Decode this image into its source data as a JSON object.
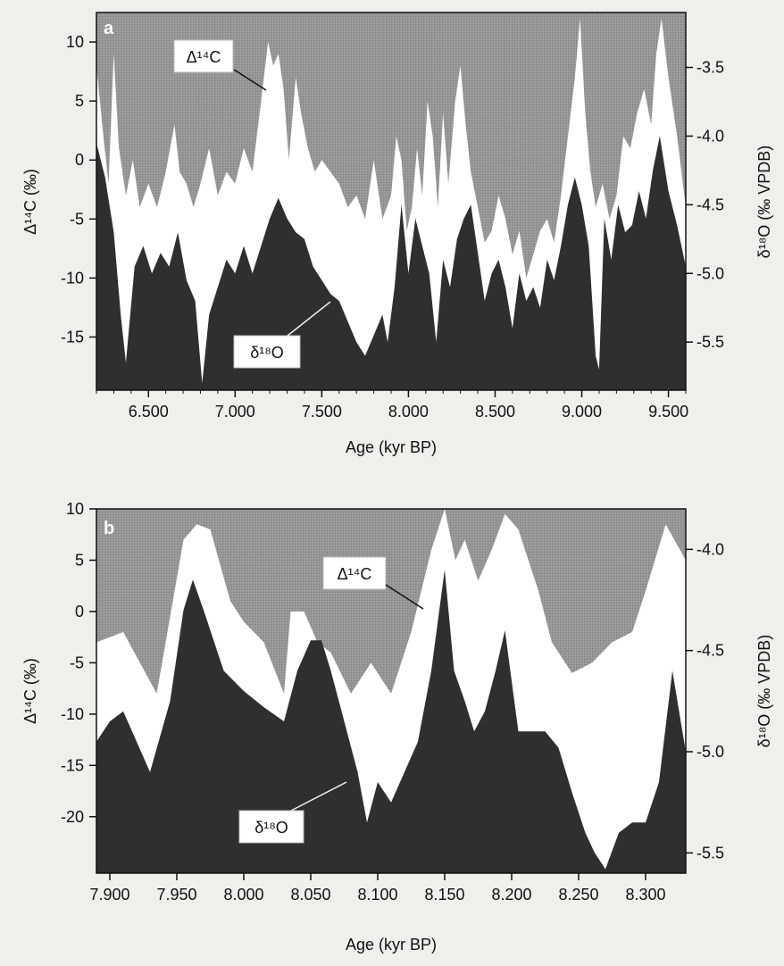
{
  "chart_data": [
    {
      "type": "area",
      "panel_label": "a",
      "xlabel": "Age (kyr BP)",
      "ylabel_left": "Δ¹⁴C (‰)",
      "ylabel_right": "δ¹⁸O (‰ VPDB)",
      "xlim": [
        6.2,
        9.6
      ],
      "ylim_left": [
        -19.5,
        12.5
      ],
      "ylim_right": [
        -5.85,
        -3.1
      ],
      "x_ticks": [
        6.5,
        7.0,
        7.5,
        8.0,
        8.5,
        9.0,
        9.5
      ],
      "x_tick_labels": [
        "6.500",
        "7.000",
        "7.500",
        "8.000",
        "8.500",
        "9.000",
        "9.500"
      ],
      "y_left_ticks": [
        10,
        5,
        0,
        -5,
        -10,
        -15
      ],
      "y_left_tick_labels": [
        "10",
        "5",
        "0",
        "-5",
        "-10",
        "-15"
      ],
      "y_right_ticks": [
        -3.5,
        -4.0,
        -4.5,
        -5.0,
        -5.5
      ],
      "y_right_tick_labels": [
        "-3.5",
        "-4.0",
        "-4.5",
        "-5.0",
        "-5.5"
      ],
      "series": [
        {
          "name": "Δ¹⁴C",
          "axis": "left",
          "x": [
            6.2,
            6.24,
            6.27,
            6.3,
            6.33,
            6.37,
            6.41,
            6.45,
            6.5,
            6.55,
            6.6,
            6.65,
            6.68,
            6.72,
            6.76,
            6.8,
            6.85,
            6.9,
            6.95,
            7.0,
            7.05,
            7.1,
            7.15,
            7.19,
            7.22,
            7.25,
            7.28,
            7.31,
            7.35,
            7.38,
            7.42,
            7.46,
            7.5,
            7.55,
            7.6,
            7.65,
            7.7,
            7.75,
            7.8,
            7.85,
            7.9,
            7.93,
            7.96,
            7.99,
            8.02,
            8.05,
            8.08,
            8.11,
            8.14,
            8.17,
            8.2,
            8.23,
            8.27,
            8.3,
            8.33,
            8.36,
            8.4,
            8.44,
            8.48,
            8.52,
            8.56,
            8.6,
            8.64,
            8.68,
            8.72,
            8.76,
            8.8,
            8.84,
            8.88,
            8.92,
            8.96,
            8.99,
            9.02,
            9.05,
            9.08,
            9.12,
            9.16,
            9.2,
            9.24,
            9.28,
            9.32,
            9.36,
            9.4,
            9.43,
            9.46,
            9.5,
            9.55,
            9.6
          ],
          "values": [
            8,
            2,
            -2,
            9,
            1,
            -3,
            0,
            -4,
            -2,
            -4,
            -1,
            3,
            -1,
            -2,
            -4,
            -2,
            1,
            -3,
            -1,
            -2,
            1,
            -1,
            5,
            10,
            8,
            9,
            6,
            0,
            7,
            4,
            1,
            -1,
            0,
            -1,
            -2,
            -4,
            -3,
            -5,
            0,
            -5,
            -3,
            2,
            0,
            -6,
            -4,
            1,
            -3,
            5,
            2,
            -4,
            4,
            -2,
            5,
            8,
            3,
            -1,
            -4,
            -7,
            -6,
            -3,
            -5,
            -8,
            -6,
            -10,
            -8,
            -6,
            -5,
            -7,
            -3,
            2,
            7,
            12,
            4,
            -1,
            -4,
            -2,
            -5,
            -3,
            2,
            1,
            4,
            6,
            3,
            9,
            12,
            7,
            2,
            -4
          ]
        },
        {
          "name": "δ¹⁸O",
          "axis": "right",
          "x": [
            6.2,
            6.25,
            6.3,
            6.34,
            6.37,
            6.42,
            6.47,
            6.52,
            6.57,
            6.62,
            6.67,
            6.72,
            6.77,
            6.81,
            6.85,
            6.9,
            6.95,
            7.0,
            7.05,
            7.1,
            7.15,
            7.2,
            7.25,
            7.3,
            7.35,
            7.4,
            7.45,
            7.5,
            7.55,
            7.6,
            7.65,
            7.7,
            7.75,
            7.8,
            7.85,
            7.88,
            7.92,
            7.96,
            8.0,
            8.04,
            8.08,
            8.12,
            8.16,
            8.2,
            8.24,
            8.28,
            8.32,
            8.36,
            8.4,
            8.44,
            8.48,
            8.52,
            8.56,
            8.6,
            8.64,
            8.68,
            8.72,
            8.76,
            8.8,
            8.84,
            8.88,
            8.92,
            8.96,
            9.0,
            9.04,
            9.08,
            9.1,
            9.13,
            9.17,
            9.21,
            9.25,
            9.29,
            9.33,
            9.37,
            9.41,
            9.45,
            9.5,
            9.55,
            9.6
          ],
          "values": [
            -4.05,
            -4.3,
            -4.7,
            -5.3,
            -5.65,
            -4.95,
            -4.8,
            -5.0,
            -4.85,
            -4.95,
            -4.7,
            -5.05,
            -5.2,
            -5.8,
            -5.3,
            -5.1,
            -4.9,
            -5.0,
            -4.8,
            -5.0,
            -4.8,
            -4.6,
            -4.45,
            -4.6,
            -4.7,
            -4.75,
            -4.95,
            -5.05,
            -5.15,
            -5.2,
            -5.35,
            -5.5,
            -5.6,
            -5.45,
            -5.3,
            -5.5,
            -5.1,
            -4.5,
            -5.0,
            -4.6,
            -4.8,
            -5.0,
            -5.5,
            -4.9,
            -5.1,
            -4.75,
            -4.6,
            -4.5,
            -4.85,
            -5.2,
            -5.0,
            -4.9,
            -5.1,
            -5.4,
            -5.0,
            -5.2,
            -5.1,
            -5.25,
            -4.9,
            -5.05,
            -4.8,
            -4.5,
            -4.3,
            -4.5,
            -4.8,
            -5.6,
            -5.7,
            -4.6,
            -4.9,
            -4.5,
            -4.7,
            -4.65,
            -4.4,
            -4.6,
            -4.25,
            -4.0,
            -4.4,
            -4.65,
            -4.95
          ]
        }
      ],
      "annotations": [
        {
          "text": "Δ¹⁴C",
          "target_series": 0
        },
        {
          "text": "δ¹⁸O",
          "target_series": 1
        }
      ],
      "grid": false
    },
    {
      "type": "area",
      "panel_label": "b",
      "xlabel": "Age (kyr BP)",
      "ylabel_left": "Δ¹⁴C (‰)",
      "ylabel_right": "δ¹⁸O (‰ VPDB)",
      "xlim": [
        7.89,
        8.33
      ],
      "ylim_left": [
        -25.5,
        10
      ],
      "ylim_right": [
        -5.6,
        -3.8
      ],
      "x_ticks": [
        7.9,
        7.95,
        8.0,
        8.05,
        8.1,
        8.15,
        8.2,
        8.25,
        8.3
      ],
      "x_tick_labels": [
        "7.900",
        "7.950",
        "8.000",
        "8.050",
        "8.100",
        "8.150",
        "8.200",
        "8.250",
        "8.300"
      ],
      "y_left_ticks": [
        10,
        5,
        0,
        -5,
        -10,
        -15,
        -20
      ],
      "y_left_tick_labels": [
        "10",
        "5",
        "0",
        "-5",
        "-10",
        "-15",
        "-20"
      ],
      "y_right_ticks": [
        -4.0,
        -4.5,
        -5.0,
        -5.5
      ],
      "y_right_tick_labels": [
        "-4.0",
        "-4.5",
        "-5.0",
        "-5.5"
      ],
      "series": [
        {
          "name": "Δ¹⁴C",
          "axis": "left",
          "x": [
            7.89,
            7.91,
            7.935,
            7.955,
            7.965,
            7.975,
            7.99,
            8.0,
            8.015,
            8.03,
            8.035,
            8.045,
            8.055,
            8.065,
            8.08,
            8.095,
            8.11,
            8.125,
            8.14,
            8.15,
            8.158,
            8.165,
            8.175,
            8.185,
            8.195,
            8.205,
            8.22,
            8.23,
            8.245,
            8.26,
            8.275,
            8.29,
            8.3,
            8.315,
            8.33
          ],
          "values": [
            -3,
            -2,
            -8,
            7,
            8.5,
            8,
            1,
            -1,
            -3,
            -8,
            0,
            0,
            -3,
            -4,
            -8,
            -5,
            -8,
            -2,
            6,
            10,
            5,
            7,
            3,
            6,
            9.5,
            8,
            2,
            -3,
            -6,
            -5,
            -3,
            -2,
            2,
            8.5,
            5
          ]
        },
        {
          "name": "δ¹⁸O",
          "axis": "right",
          "x": [
            7.89,
            7.9,
            7.91,
            7.92,
            7.93,
            7.945,
            7.955,
            7.962,
            7.97,
            7.985,
            8.0,
            8.015,
            8.03,
            8.04,
            8.05,
            8.058,
            8.065,
            8.075,
            8.085,
            8.092,
            8.1,
            8.11,
            8.12,
            8.13,
            8.14,
            8.15,
            8.157,
            8.165,
            8.172,
            8.18,
            8.188,
            8.195,
            8.205,
            8.215,
            8.225,
            8.235,
            8.245,
            8.255,
            8.262,
            8.27,
            8.28,
            8.29,
            8.3,
            8.31,
            8.32,
            8.33
          ],
          "values": [
            -4.95,
            -4.85,
            -4.8,
            -4.95,
            -5.1,
            -4.75,
            -4.3,
            -4.15,
            -4.3,
            -4.6,
            -4.7,
            -4.78,
            -4.85,
            -4.6,
            -4.45,
            -4.45,
            -4.6,
            -4.85,
            -5.1,
            -5.35,
            -5.15,
            -5.25,
            -5.1,
            -4.95,
            -4.6,
            -4.1,
            -4.6,
            -4.75,
            -4.9,
            -4.8,
            -4.6,
            -4.4,
            -4.9,
            -4.9,
            -4.9,
            -4.98,
            -5.2,
            -5.4,
            -5.5,
            -5.58,
            -5.4,
            -5.35,
            -5.35,
            -5.15,
            -4.6,
            -5.0
          ]
        }
      ],
      "annotations": [
        {
          "text": "Δ¹⁴C",
          "target_series": 0
        },
        {
          "text": "δ¹⁸O",
          "target_series": 1
        }
      ],
      "grid": false
    }
  ],
  "colors": {
    "page_background": "#f1efec",
    "c14_region": "#8f8f8f",
    "between_region": "#ffffff",
    "o18_region": "#2f2f2f",
    "axis": "#111111",
    "text": "#111111",
    "label_box": "#ffffff"
  }
}
